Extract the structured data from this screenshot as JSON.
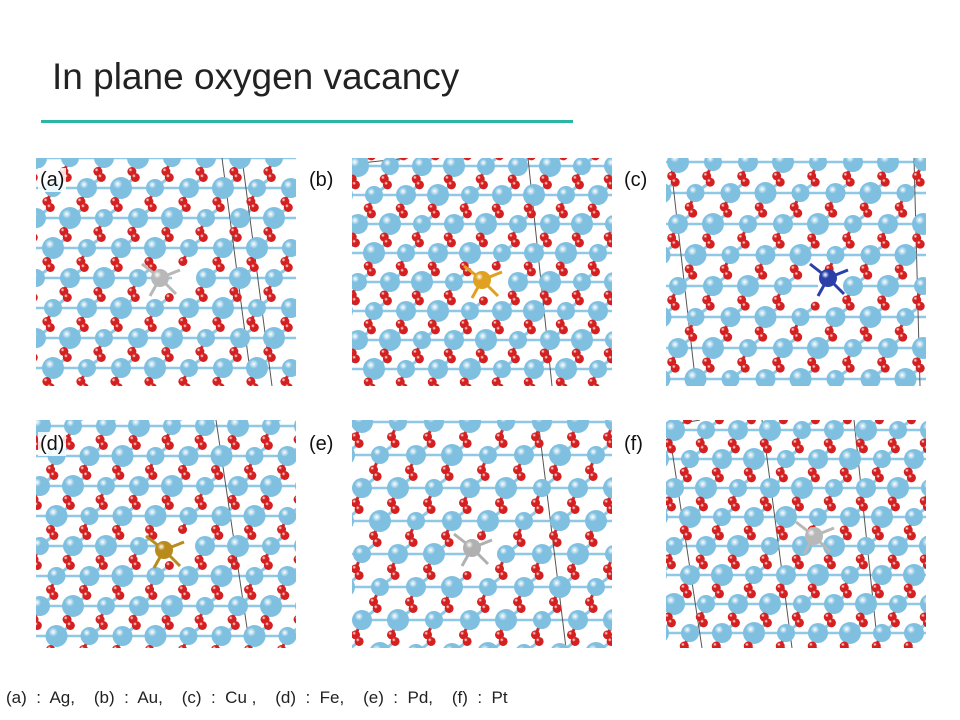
{
  "slide": {
    "title": "In plane oxygen vacancy",
    "accent_color": "#2ab5a5"
  },
  "panels": [
    {
      "label": "(a)",
      "dopant_color": "#b8b8b8",
      "dopant_kind": "silver"
    },
    {
      "label": "(b)",
      "dopant_color": "#e0a020",
      "dopant_kind": "gold"
    },
    {
      "label": "(c)",
      "dopant_color": "#2a3fa8",
      "dopant_kind": "blue"
    },
    {
      "label": "(d)",
      "dopant_color": "#b98a1c",
      "dopant_kind": "bronze"
    },
    {
      "label": "(e)",
      "dopant_color": "#b0b0b0",
      "dopant_kind": "silver"
    },
    {
      "label": "(f)",
      "dopant_color": "#b8b8b8",
      "dopant_kind": "silver"
    }
  ],
  "atom_colors": {
    "host": "#7fbfe0",
    "oxygen": "#d42020",
    "bond_host": "#8ec8e6",
    "bond_oxygen": "#cc2a2a"
  },
  "caption": "(a)  :  Ag,    (b)  :  Au,    (c)  :  Cu ,    (d)  :  Fe,    (e)  :  Pd,    (f)  :  Pt"
}
